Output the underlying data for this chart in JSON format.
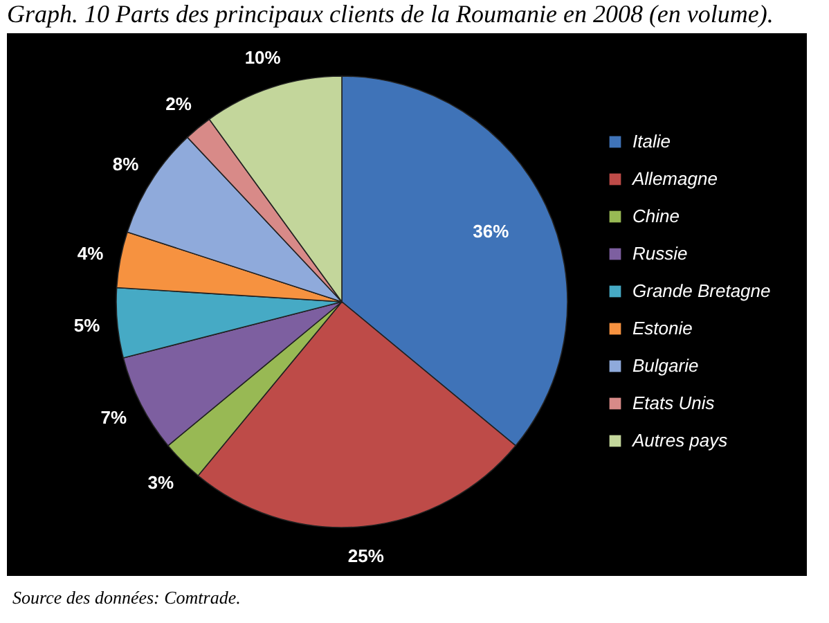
{
  "chart_data": {
    "type": "pie",
    "title": "Graph. 10 Parts des principaux clients de la Roumanie en 2008 (en volume).",
    "categories": [
      "Italie",
      "Allemagne",
      "Chine",
      "Russie",
      "Grande Bretagne",
      "Estonie",
      "Bulgarie",
      "Etats Unis",
      "Autres pays"
    ],
    "values": [
      36,
      25,
      3,
      7,
      5,
      4,
      8,
      2,
      10
    ],
    "colors": [
      "#3f73b8",
      "#be4b48",
      "#98b954",
      "#7d5fa0",
      "#46aac5",
      "#f69240",
      "#8faadb",
      "#d88a88",
      "#c3d69b"
    ],
    "value_labels": [
      "36%",
      "25%",
      "3%",
      "7%",
      "5%",
      "4%",
      "8%",
      "2%",
      "10%"
    ],
    "legend": "right",
    "annotations": [
      "Source des données: Comtrade."
    ]
  }
}
